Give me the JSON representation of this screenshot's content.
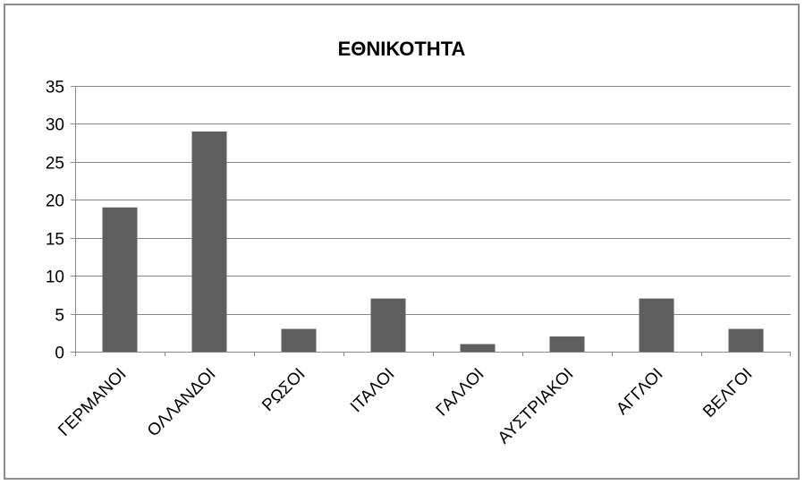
{
  "chart_data": {
    "type": "bar",
    "title": "ΕΘΝΙΚΟΤΗΤΑ",
    "xlabel": "",
    "ylabel": "",
    "categories": [
      "ΓΕΡΜΑΝΟΙ",
      "ΟΛΛΑΝΔΟΙ",
      "ΡΩΣΟΙ",
      "ΙΤΑΛΟΙ",
      "ΓΑΛΛΟΙ",
      "ΑΥΣΤΡΙΑΚΟΙ",
      "ΑΓΓΛΟΙ",
      "ΒΕΛΓΟΙ"
    ],
    "values": [
      19,
      29,
      3,
      7,
      1,
      2,
      7,
      3
    ],
    "ylim": [
      0,
      35
    ],
    "yticks": [
      0,
      5,
      10,
      15,
      20,
      25,
      30,
      35
    ],
    "grid": true,
    "legend": "none",
    "bar_color": "#5f5f5f",
    "grid_color": "#888888"
  }
}
